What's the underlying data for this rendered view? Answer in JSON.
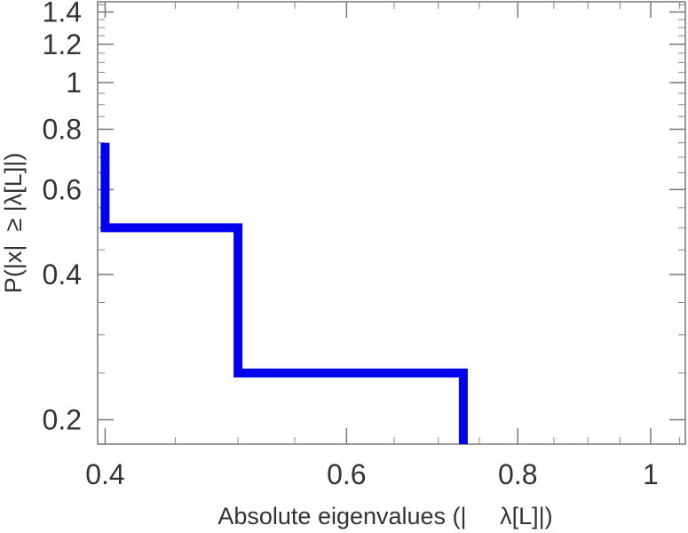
{
  "chart_data": {
    "type": "line",
    "step": true,
    "xscale": "log",
    "yscale": "log",
    "xlim": [
      0.395,
      1.06
    ],
    "ylim": [
      0.178,
      1.47
    ],
    "xticks": [
      0.4,
      0.6,
      0.8,
      1
    ],
    "xtick_labels": [
      "0.4",
      "0.6",
      "0.8",
      "1"
    ],
    "yticks": [
      0.2,
      0.4,
      0.6,
      0.8,
      1,
      1.2,
      1.4
    ],
    "ytick_labels": [
      "0.2",
      "0.4",
      "0.6",
      "0.8",
      "1",
      "1.2",
      "1.4"
    ],
    "xlabel": "Absolute eigenvalues (|     λ[L]|)",
    "ylabel": "P(|x|  ≥ |λ[L]|)",
    "grid": false,
    "series": [
      {
        "color": "#0000ee",
        "points": [
          {
            "x": 0.4,
            "y": 0.75
          },
          {
            "x": 0.4,
            "y": 0.5
          },
          {
            "x": 0.5,
            "y": 0.5
          },
          {
            "x": 0.5,
            "y": 0.25
          },
          {
            "x": 0.73,
            "y": 0.25
          },
          {
            "x": 0.73,
            "y": 0.178
          }
        ]
      }
    ]
  }
}
